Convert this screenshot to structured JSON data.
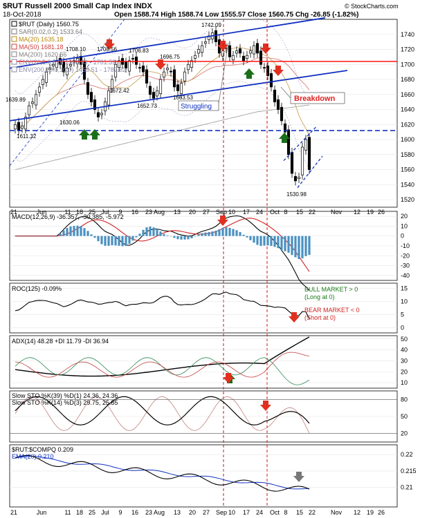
{
  "header": {
    "symbol_line": "$RUT Russell 2000 Small Cap Index INDX",
    "date": "18-Oct-2018",
    "ohlc": "Open 1588.74  High 1588.74  Low 1555.57  Close 1560.75  Chg -26.85 (-1.82%)",
    "credit": "© StockCharts.com"
  },
  "legend_main": [
    {
      "text": "$RUT (Daily) 1560.75",
      "color": "#000000"
    },
    {
      "text": "SAR(0.02,0.2) 1533.64",
      "color": "#777777"
    },
    {
      "text": "MA(20) 1635.18",
      "color": "#b8860b"
    },
    {
      "text": "MA(50) 1681.18",
      "color": "#d04040"
    },
    {
      "text": "MA(200) 1620.56",
      "color": "#808080"
    },
    {
      "text": "ENV(20,5.0,5.0) 1553.63 - 1701.59",
      "color": "#8888aa"
    },
    {
      "text": "ENV(200,10.0,10.0) 1458.51 - 1782.62",
      "color": "#8888aa"
    }
  ],
  "annotations": {
    "struggling": "Struggling",
    "breakdown": "Breakdown",
    "price_labels": [
      "1639.89",
      "1611.32",
      "1630.06",
      "1708.10",
      "1708.56",
      "1706.83",
      "1672.42",
      "1652.73",
      "1696.75",
      "1663.53",
      "1742.09",
      "1530.98"
    ],
    "roc_bull_1": "BULL MARKET > 0",
    "roc_bull_2": "(Long at 0)",
    "roc_bear_1": "BEAR MARKET < 0",
    "roc_bear_2": "(Short at 0)"
  },
  "x_axis_labels": [
    "21",
    "Jun",
    "11",
    "18",
    "25",
    "Jul",
    "9",
    "16",
    "23",
    "Aug",
    "13",
    "20",
    "27",
    "Sep",
    "10",
    "17",
    "24",
    "Oct",
    "8",
    "15",
    "22",
    "Nov",
    "12",
    "19",
    "26"
  ],
  "colors": {
    "up_arrow": "#1a6e1a",
    "down_arrow": "#e03020",
    "trend_line": "#1030c0",
    "resistance": "#ff0000",
    "support_dashed": "#1030c0",
    "vline": "#d01010",
    "histogram": "#4a90c0",
    "breakdown_text": "#e02020",
    "bull_text": "#1a7a1a",
    "bear_text": "#d02020"
  },
  "chart_data": [
    {
      "type": "candlestick",
      "title": "$RUT Russell 2000 Small Cap Index INDX",
      "y_ticks": [
        1520,
        1540,
        1560,
        1580,
        1600,
        1620,
        1640,
        1660,
        1680,
        1700,
        1720,
        1740
      ],
      "ylim": [
        1510,
        1760
      ],
      "close": [
        1620,
        1612,
        1618,
        1630,
        1645,
        1650,
        1660,
        1670,
        1680,
        1690,
        1695,
        1700,
        1705,
        1700,
        1690,
        1695,
        1700,
        1705,
        1708,
        1700,
        1680,
        1660,
        1650,
        1640,
        1630,
        1635,
        1650,
        1665,
        1680,
        1700,
        1705,
        1700,
        1695,
        1705,
        1707,
        1700,
        1695,
        1690,
        1675,
        1660,
        1655,
        1665,
        1680,
        1690,
        1695,
        1690,
        1670,
        1665,
        1675,
        1690,
        1700,
        1705,
        1712,
        1720,
        1725,
        1730,
        1738,
        1742,
        1730,
        1715,
        1718,
        1722,
        1710,
        1712,
        1718,
        1715,
        1705,
        1712,
        1718,
        1725,
        1715,
        1700,
        1695,
        1685,
        1670,
        1650,
        1640,
        1625,
        1610,
        1580,
        1555,
        1545,
        1550,
        1590,
        1600,
        1560
      ],
      "sar_last": 1533.64,
      "ma20_last": 1635.18,
      "ma50_last": 1681.18,
      "ma200_last": 1620.56,
      "env20": [
        1553.63,
        1701.59
      ],
      "env200": [
        1458.51,
        1782.62
      ],
      "resistance_level": 1704,
      "support_level": 1612
    },
    {
      "type": "line",
      "name": "MACD(12,26,9) -36.357, -30.385, -5.972",
      "y_ticks": [
        -40,
        -30,
        -20,
        -10,
        0,
        10,
        20
      ],
      "ylim": [
        -45,
        25
      ],
      "macd_last": -36.357,
      "signal_last": -30.385,
      "histogram_last": -5.972
    },
    {
      "type": "line",
      "name": "ROC(125) -0.09%",
      "y_ticks": [
        0,
        5,
        10,
        15
      ],
      "ylim": [
        -2,
        17
      ],
      "last": -0.09
    },
    {
      "type": "line",
      "name": "ADX(14) 48.28 +DI 11.79 -DI 36.94",
      "y_ticks": [
        10,
        20,
        30,
        40,
        50
      ],
      "ylim": [
        5,
        53
      ],
      "adx_last": 48.28,
      "plus_di_last": 11.79,
      "minus_di_last": 36.94
    },
    {
      "type": "line",
      "name_1": "Slow STO %K(39) %D(1) 24.36, 24.36",
      "name_2": "Slow STO %K(14) %D(3) 29.75, 25.85",
      "y_ticks": [
        20,
        50,
        80
      ],
      "ylim": [
        5,
        95
      ],
      "sto39_last": 24.36,
      "sto14_k_last": 29.75,
      "sto14_d_last": 25.85
    },
    {
      "type": "line",
      "name": "$RUT:$COMPQ 0.209",
      "name_ema": "EMA(20) 0.210",
      "y_ticks": [
        0.21,
        0.215,
        0.22
      ],
      "ylim": [
        0.204,
        0.223
      ],
      "last": 0.209,
      "ema_last": 0.21
    }
  ]
}
